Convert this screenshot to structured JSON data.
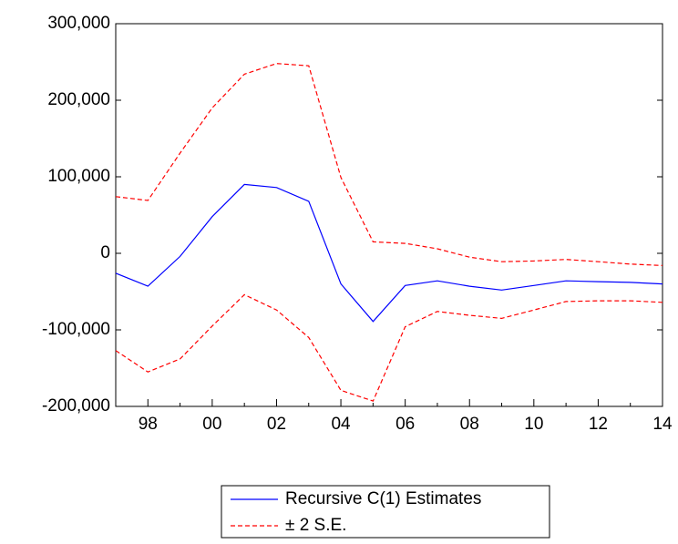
{
  "chart_data": {
    "type": "line",
    "categories": [
      null,
      "98",
      null,
      "00",
      null,
      "02",
      null,
      "04",
      null,
      "06",
      null,
      "08",
      null,
      "10",
      null,
      "12",
      null,
      "14"
    ],
    "series": [
      {
        "name": "Recursive C(1) Estimates",
        "color": "#0000ff",
        "values": [
          -26000,
          -43000,
          -4000,
          48000,
          90000,
          86000,
          68000,
          -40000,
          -89000,
          -42000,
          -36000,
          -43000,
          -48000,
          -42000,
          -36000,
          -37000,
          -38000,
          -40000
        ]
      },
      {
        "name": "± 2 S.E.",
        "color": "#ff0000",
        "dashed": true,
        "values": [
          74000,
          69000,
          131000,
          190000,
          234000,
          248000,
          245000,
          99000,
          15000,
          13000,
          6000,
          -5000,
          -11000,
          -10000,
          -8000,
          -11000,
          -14000,
          -16000
        ],
        "lower": [
          -127000,
          -155000,
          -138000,
          -95000,
          -54000,
          -74000,
          -110000,
          -179000,
          -193000,
          -96000,
          -76000,
          -81000,
          -85000,
          -74000,
          -63000,
          -62000,
          -62000,
          -64000
        ]
      }
    ],
    "ylim": [
      -200000,
      300000
    ],
    "yticks": [
      {
        "value": -200000,
        "label": "-200,000"
      },
      {
        "value": -100000,
        "label": "-100,000"
      },
      0,
      {
        "value": 100000,
        "label": "100,000"
      },
      {
        "value": 200000,
        "label": "200,000"
      },
      {
        "value": 300000,
        "label": "300,000"
      }
    ]
  }
}
